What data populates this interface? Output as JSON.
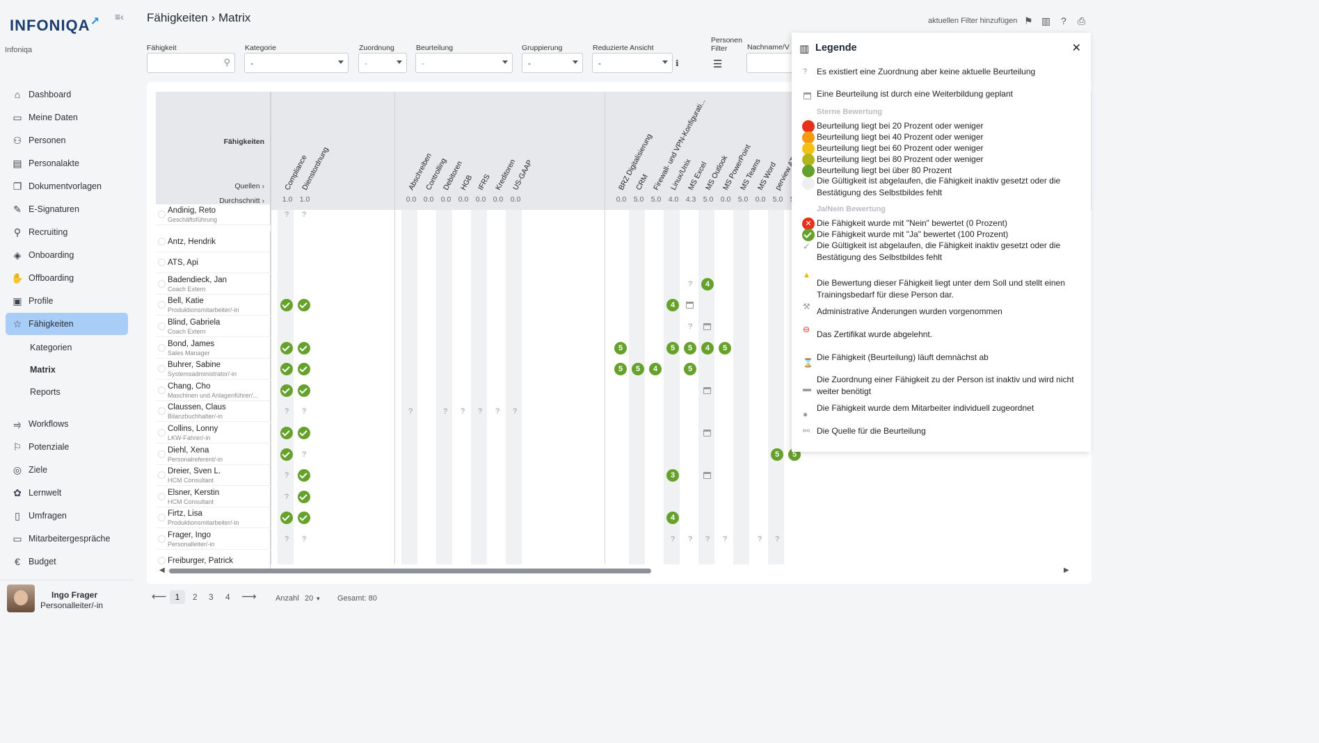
{
  "sidebar": {
    "brand": "INFONIQA",
    "org": "Infoniqa",
    "nav": [
      {
        "label": "Dashboard",
        "icon": "home-icon"
      },
      {
        "label": "Meine Daten",
        "icon": "folder-icon"
      },
      {
        "label": "Personen",
        "icon": "people-icon"
      },
      {
        "label": "Personalakte",
        "icon": "file-person-icon"
      },
      {
        "label": "Dokumentvorlagen",
        "icon": "document-icon"
      },
      {
        "label": "E-Signaturen",
        "icon": "pen-icon"
      },
      {
        "label": "Recruiting",
        "icon": "recruit-icon"
      },
      {
        "label": "Onboarding",
        "icon": "handshake-icon"
      },
      {
        "label": "Offboarding",
        "icon": "hand-icon"
      },
      {
        "label": "Profile",
        "icon": "profile-icon"
      },
      {
        "label": "Fähigkeiten",
        "icon": "star-icon"
      }
    ],
    "sub": [
      "Kategorien",
      "Matrix",
      "Reports"
    ],
    "nav2": [
      {
        "label": "Workflows",
        "icon": "workflow-icon"
      },
      {
        "label": "Potenziale",
        "icon": "flag-icon"
      },
      {
        "label": "Ziele",
        "icon": "target-icon"
      },
      {
        "label": "Lernwelt",
        "icon": "learn-icon"
      },
      {
        "label": "Umfragen",
        "icon": "clipboard-icon"
      },
      {
        "label": "Mitarbeitergespräche",
        "icon": "meeting-icon"
      },
      {
        "label": "Budget",
        "icon": "euro-icon"
      }
    ],
    "user": {
      "name": "Ingo Frager",
      "role": "Personalleiter/-in"
    }
  },
  "header": {
    "title": "Fähigkeiten › Matrix",
    "add_filter": "aktuellen Filter hinzufügen"
  },
  "filters": {
    "faehigkeit": {
      "label": "Fähigkeit",
      "value": ""
    },
    "kategorie": {
      "label": "Kategorie",
      "value": "-"
    },
    "zuordnung": {
      "label": "Zuordnung",
      "value": "-"
    },
    "beurteilung": {
      "label": "Beurteilung",
      "value": "-"
    },
    "gruppierung": {
      "label": "Gruppierung",
      "value": "-"
    },
    "reduziert": {
      "label": "Reduzierte Ansicht",
      "value": "-"
    },
    "personen": {
      "label": "Personen\nFilter"
    },
    "nachname": {
      "label": "Nachname/V"
    }
  },
  "matrix": {
    "header_label": "Fähigkeiten",
    "sources_label": "Quellen ›",
    "avg_label": "Durchschnitt ›",
    "columns": [
      {
        "name": "Compliance",
        "avg": "1.0"
      },
      {
        "name": "Dienstordnung",
        "avg": "1.0"
      },
      {
        "name": "Abschreiben",
        "avg": "0.0"
      },
      {
        "name": "Controlling",
        "avg": "0.0"
      },
      {
        "name": "Debitoren",
        "avg": "0.0"
      },
      {
        "name": "HGB",
        "avg": "0.0"
      },
      {
        "name": "IFRS",
        "avg": "0.0"
      },
      {
        "name": "Kreditoren",
        "avg": "0.0"
      },
      {
        "name": "US-GAAP",
        "avg": "0.0"
      },
      {
        "name": "BRZ Digitalisierung",
        "avg": "0.0"
      },
      {
        "name": "CRM",
        "avg": "5.0"
      },
      {
        "name": "Firewall- und VPN-Konfigurati...",
        "avg": "5.0"
      },
      {
        "name": "Linux/Unix",
        "avg": "4.0"
      },
      {
        "name": "MS Excel",
        "avg": "4.3"
      },
      {
        "name": "MS Outlook",
        "avg": "5.0"
      },
      {
        "name": "MS PowerPoint",
        "avg": "0.0"
      },
      {
        "name": "MS Teams",
        "avg": "5.0"
      },
      {
        "name": "MS Word",
        "avg": "0.0"
      },
      {
        "name": "perview AT",
        "avg": "5.0"
      },
      {
        "name": "",
        "avg": "5.0"
      }
    ],
    "rows": [
      {
        "name": "Andinig, Reto",
        "role": "Geschäftsführung"
      },
      {
        "name": "Antz, Hendrik",
        "role": ""
      },
      {
        "name": "ATS, Api",
        "role": ""
      },
      {
        "name": "Badendieck, Jan",
        "role": "Coach Extern"
      },
      {
        "name": "Bell, Katie",
        "role": "Produktionsmitarbeiter/-in"
      },
      {
        "name": "Blind, Gabriela",
        "role": "Coach Extern"
      },
      {
        "name": "Bond, James",
        "role": "Sales Manager"
      },
      {
        "name": "Buhrer, Sabine",
        "role": "Systemsadministrator/-in"
      },
      {
        "name": "Chang, Cho",
        "role": "Maschinen und Anlagenführer/..."
      },
      {
        "name": "Claussen, Claus",
        "role": "Bilanzbuchhalter/-in"
      },
      {
        "name": "Collins, Lonny",
        "role": "LKW-Fahrer/-in"
      },
      {
        "name": "Diehl, Xena",
        "role": "Personalreferent/-in"
      },
      {
        "name": "Dreier, Sven L.",
        "role": "HCM Consultant"
      },
      {
        "name": "Elsner, Kerstin",
        "role": "HCM Consultant"
      },
      {
        "name": "Firtz, Lisa",
        "role": "Produktionsmitarbeiter/-in"
      },
      {
        "name": "Frager, Ingo",
        "role": "Personalleiter/-in"
      },
      {
        "name": "Freiburger, Patrick",
        "role": ""
      }
    ]
  },
  "pager": {
    "pages": [
      "1",
      "2",
      "3",
      "4"
    ],
    "count_label": "Anzahl",
    "count": "20",
    "total": "Gesamt: 80"
  },
  "legend": {
    "title": "Legende",
    "items": [
      "Es existiert eine Zuordnung aber keine aktuelle Beurteilung",
      "Eine Beurteilung ist durch eine Weiterbildung geplant"
    ],
    "stars_title": "Sterne Bewertung",
    "stars": [
      {
        "text": "Beurteilung liegt bei 20 Prozent oder weniger",
        "color": "#e8311a"
      },
      {
        "text": "Beurteilung liegt bei 40 Prozent oder weniger",
        "color": "#f39a12"
      },
      {
        "text": "Beurteilung liegt bei 60 Prozent oder weniger",
        "color": "#f4bf16"
      },
      {
        "text": "Beurteilung liegt bei 80 Prozent oder weniger",
        "color": "#b3b51c"
      },
      {
        "text": "Beurteilung liegt bei über 80 Prozent",
        "color": "#66a12b"
      }
    ],
    "stars_expired": "Die Gültigkeit ist abgelaufen, die Fähigkeit inaktiv gesetzt oder die Bestätigung des Selbstbildes fehlt",
    "yn_title": "Ja/Nein Bewertung",
    "yn": [
      "Die Fähigkeit wurde mit \"Nein\" bewertet (0 Prozent)",
      "Die Fähigkeit wurde mit \"Ja\" bewertet (100 Prozent)",
      "Die Gültigkeit ist abgelaufen, die Fähigkeit inaktiv gesetzt oder die Bestätigung des Selbstbildes fehlt"
    ],
    "more": [
      "Die Bewertung dieser Fähigkeit liegt unter dem Soll und stellt einen Trainingsbedarf für diese Person dar.",
      "Administrative Änderungen wurden vorgenommen",
      "Das Zertifikat wurde abgelehnt.",
      "Die Fähigkeit (Beurteilung) läuft demnächst ab",
      "Die Zuordnung einer Fähigkeit zu der Person ist inaktiv und wird nicht weiter benötigt",
      "Die Fähigkeit wurde dem Mitarbeiter individuell zugeordnet",
      "Die Quelle für die Beurteilung"
    ]
  }
}
